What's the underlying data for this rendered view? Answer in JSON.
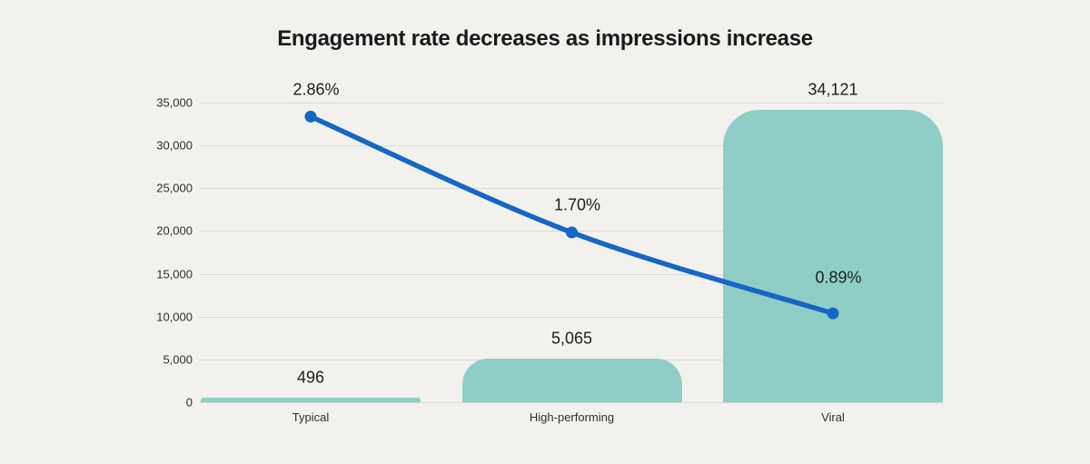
{
  "title": "Engagement rate decreases as impressions increase",
  "colors": {
    "background": "#f2f1ee",
    "bar_fill": "#8fcdc7",
    "line_stroke": "#1566c5",
    "gridline": "#dbd8d4",
    "title_text": "#1b1b1b",
    "label_text": "#1e1e1e",
    "tick_text": "#2e2e2e"
  },
  "chart_data": {
    "type": "bar",
    "title": "Engagement rate decreases as impressions increase",
    "categories": [
      "Typical",
      "High-performing",
      "Viral"
    ],
    "series": [
      {
        "name": "impressions-bars",
        "type": "bar",
        "values": [
          496,
          5065,
          34121
        ],
        "labels": [
          "496",
          "5,065",
          "34,121"
        ]
      },
      {
        "name": "engagement-rate-line",
        "type": "line",
        "values": [
          2.86,
          1.7,
          0.89
        ],
        "labels": [
          "2.86%",
          "1.70%",
          "0.89%"
        ]
      }
    ],
    "y_axis": {
      "tick_labels": [
        "35,000",
        "30,000",
        "25,000",
        "20,000",
        "15,000",
        "10,000",
        "5,000",
        "0"
      ],
      "tick_values": [
        35000,
        30000,
        25000,
        20000,
        15000,
        10000,
        5000,
        0
      ],
      "ylim": [
        0,
        35000
      ]
    },
    "y2_axis": {
      "ylim": [
        0,
        3
      ]
    },
    "grid": true,
    "legend": false
  }
}
